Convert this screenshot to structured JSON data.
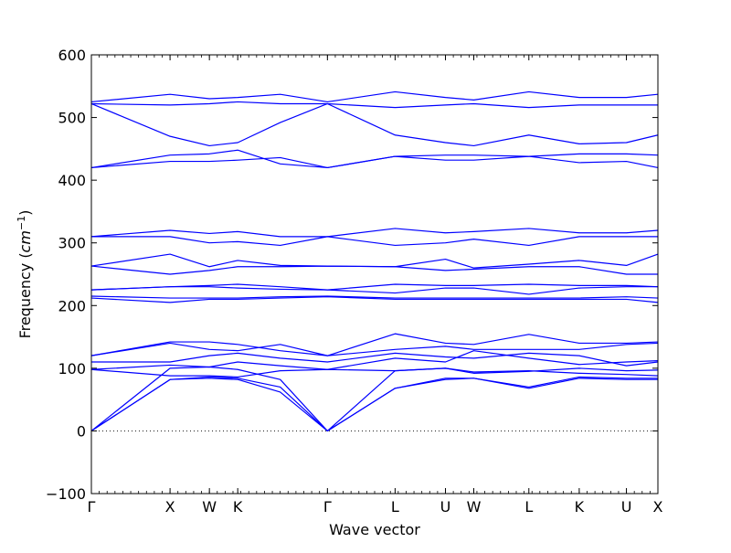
{
  "chart_data": {
    "type": "line",
    "title": "",
    "xlabel": "Wave vector",
    "ylabel": "Frequency",
    "ylabel_unit": "cm",
    "ylabel_unit_exponent": "−1",
    "ylim": [
      -100,
      600
    ],
    "yticks": [
      -100,
      0,
      100,
      200,
      300,
      400,
      500,
      600
    ],
    "xlim": [
      0,
      3.6
    ],
    "high_symmetry_points": [
      {
        "label": "Γ",
        "x": 0.0
      },
      {
        "label": "X",
        "x": 0.5
      },
      {
        "label": "W",
        "x": 0.75
      },
      {
        "label": "K",
        "x": 0.93
      },
      {
        "label": "Γ",
        "x": 1.5
      },
      {
        "label": "L",
        "x": 1.93
      },
      {
        "label": "U",
        "x": 2.25
      },
      {
        "label": "W",
        "x": 2.43
      },
      {
        "label": "L",
        "x": 2.78
      },
      {
        "label": "K",
        "x": 3.1
      },
      {
        "label": "U",
        "x": 3.4
      },
      {
        "label": "X",
        "x": 3.6
      }
    ],
    "zero_line": true,
    "line_color": "#0000ff",
    "series": [
      {
        "x": [
          0,
          0.5,
          0.75,
          0.93,
          1.2,
          1.5,
          1.93,
          2.25,
          2.43,
          2.78,
          3.1,
          3.4,
          3.6
        ],
        "values": [
          0,
          82,
          84,
          82,
          62,
          0,
          68,
          82,
          84,
          68,
          84,
          82,
          82
        ]
      },
      {
        "x": [
          0,
          0.5,
          0.75,
          0.93,
          1.2,
          1.5,
          1.93,
          2.25,
          2.43,
          2.78,
          3.1,
          3.4,
          3.6
        ],
        "values": [
          0,
          82,
          86,
          84,
          70,
          0,
          68,
          84,
          84,
          70,
          86,
          84,
          84
        ]
      },
      {
        "x": [
          0,
          0.5,
          0.75,
          0.93,
          1.2,
          1.5,
          1.93,
          2.25,
          2.43,
          2.78,
          3.1,
          3.4,
          3.6
        ],
        "values": [
          0,
          100,
          102,
          98,
          82,
          0,
          96,
          100,
          92,
          95,
          100,
          96,
          97
        ]
      },
      {
        "x": [
          0,
          0.5,
          0.75,
          0.93,
          1.2,
          1.5,
          1.93,
          2.25,
          2.43,
          2.78,
          3.1,
          3.4,
          3.6
        ],
        "values": [
          98,
          88,
          88,
          86,
          96,
          98,
          96,
          100,
          94,
          96,
          92,
          90,
          88
        ]
      },
      {
        "x": [
          0,
          0.5,
          0.75,
          0.93,
          1.2,
          1.5,
          1.93,
          2.25,
          2.43,
          2.78,
          3.1,
          3.4,
          3.6
        ],
        "values": [
          98,
          105,
          102,
          110,
          104,
          98,
          116,
          110,
          128,
          116,
          106,
          110,
          112
        ]
      },
      {
        "x": [
          0,
          0.5,
          0.75,
          0.93,
          1.2,
          1.5,
          1.93,
          2.25,
          2.43,
          2.78,
          3.1,
          3.4,
          3.6
        ],
        "values": [
          110,
          110,
          120,
          124,
          116,
          110,
          124,
          118,
          116,
          124,
          120,
          104,
          110
        ]
      },
      {
        "x": [
          0,
          0.5,
          0.75,
          0.93,
          1.2,
          1.5,
          1.93,
          2.25,
          2.43,
          2.78,
          3.1,
          3.4,
          3.6
        ],
        "values": [
          120,
          140,
          130,
          128,
          138,
          120,
          130,
          135,
          130,
          130,
          130,
          138,
          140
        ]
      },
      {
        "x": [
          0,
          0.5,
          0.75,
          0.93,
          1.2,
          1.5,
          1.93,
          2.25,
          2.43,
          2.78,
          3.1,
          3.4,
          3.6
        ],
        "values": [
          120,
          142,
          142,
          138,
          128,
          120,
          155,
          140,
          138,
          154,
          140,
          140,
          142
        ]
      },
      {
        "x": [
          0,
          0.5,
          0.75,
          0.93,
          1.2,
          1.5,
          1.93,
          2.25,
          2.43,
          2.78,
          3.1,
          3.4,
          3.6
        ],
        "values": [
          212,
          205,
          210,
          210,
          212,
          214,
          210,
          210,
          210,
          210,
          210,
          210,
          205
        ]
      },
      {
        "x": [
          0,
          0.5,
          0.75,
          0.93,
          1.2,
          1.5,
          1.93,
          2.25,
          2.43,
          2.78,
          3.1,
          3.4,
          3.6
        ],
        "values": [
          215,
          212,
          212,
          212,
          214,
          215,
          212,
          212,
          212,
          212,
          212,
          214,
          212
        ]
      },
      {
        "x": [
          0,
          0.5,
          0.75,
          0.93,
          1.2,
          1.5,
          1.93,
          2.25,
          2.43,
          2.78,
          3.1,
          3.4,
          3.6
        ],
        "values": [
          225,
          230,
          230,
          228,
          226,
          225,
          220,
          228,
          228,
          218,
          228,
          230,
          230
        ]
      },
      {
        "x": [
          0,
          0.5,
          0.75,
          0.93,
          1.2,
          1.5,
          1.93,
          2.25,
          2.43,
          2.78,
          3.1,
          3.4,
          3.6
        ],
        "values": [
          225,
          230,
          232,
          234,
          230,
          225,
          234,
          232,
          232,
          234,
          232,
          232,
          230
        ]
      },
      {
        "x": [
          0,
          0.5,
          0.75,
          0.93,
          1.2,
          1.5,
          1.93,
          2.25,
          2.43,
          2.78,
          3.1,
          3.4,
          3.6
        ],
        "values": [
          263,
          250,
          256,
          262,
          262,
          263,
          262,
          256,
          258,
          262,
          262,
          250,
          250
        ]
      },
      {
        "x": [
          0,
          0.5,
          0.75,
          0.93,
          1.2,
          1.5,
          1.93,
          2.25,
          2.43,
          2.78,
          3.1,
          3.4,
          3.6
        ],
        "values": [
          263,
          282,
          262,
          272,
          264,
          263,
          262,
          274,
          260,
          266,
          272,
          264,
          282
        ]
      },
      {
        "x": [
          0,
          0.5,
          0.75,
          0.93,
          1.2,
          1.5,
          1.93,
          2.25,
          2.43,
          2.78,
          3.1,
          3.4,
          3.6
        ],
        "values": [
          310,
          310,
          300,
          302,
          296,
          310,
          296,
          300,
          306,
          296,
          310,
          310,
          310
        ]
      },
      {
        "x": [
          0,
          0.5,
          0.75,
          0.93,
          1.2,
          1.5,
          1.93,
          2.25,
          2.43,
          2.78,
          3.1,
          3.4,
          3.6
        ],
        "values": [
          310,
          320,
          315,
          318,
          310,
          310,
          323,
          316,
          318,
          323,
          316,
          316,
          320
        ]
      },
      {
        "x": [
          0,
          0.5,
          0.75,
          0.93,
          1.2,
          1.5,
          1.93,
          2.25,
          2.43,
          2.78,
          3.1,
          3.4,
          3.6
        ],
        "values": [
          420,
          440,
          442,
          448,
          426,
          420,
          438,
          432,
          432,
          438,
          428,
          430,
          420
        ]
      },
      {
        "x": [
          0,
          0.5,
          0.75,
          0.93,
          1.2,
          1.5,
          1.93,
          2.25,
          2.43,
          2.78,
          3.1,
          3.4,
          3.6
        ],
        "values": [
          420,
          430,
          430,
          432,
          436,
          420,
          438,
          440,
          440,
          438,
          442,
          442,
          440
        ]
      },
      {
        "x": [
          0,
          0.5,
          0.75,
          0.93,
          1.2,
          1.5,
          1.93,
          2.25,
          2.43,
          2.78,
          3.1,
          3.4,
          3.6
        ],
        "values": [
          522,
          470,
          455,
          460,
          492,
          522,
          472,
          460,
          455,
          472,
          458,
          460,
          472
        ]
      },
      {
        "x": [
          0,
          0.5,
          0.75,
          0.93,
          1.2,
          1.5,
          1.93,
          2.25,
          2.43,
          2.78,
          3.1,
          3.4,
          3.6
        ],
        "values": [
          522,
          520,
          522,
          525,
          522,
          522,
          516,
          520,
          522,
          516,
          520,
          520,
          520
        ]
      },
      {
        "x": [
          0,
          0.5,
          0.75,
          0.93,
          1.2,
          1.5,
          1.93,
          2.25,
          2.43,
          2.78,
          3.1,
          3.4,
          3.6
        ],
        "values": [
          525,
          537,
          530,
          532,
          537,
          525,
          541,
          532,
          528,
          541,
          532,
          532,
          537
        ]
      }
    ]
  }
}
